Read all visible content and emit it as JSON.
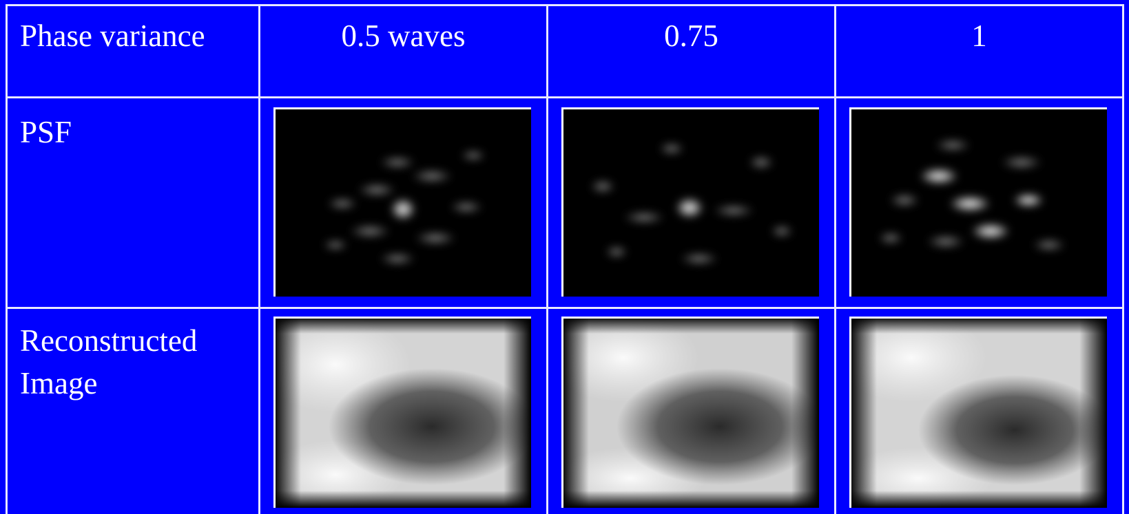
{
  "table": {
    "rows": [
      [
        "Phase variance",
        "0.5 waves",
        "0.75",
        "1"
      ],
      [
        "PSF"
      ],
      [
        "Reconstructed Image"
      ]
    ]
  }
}
